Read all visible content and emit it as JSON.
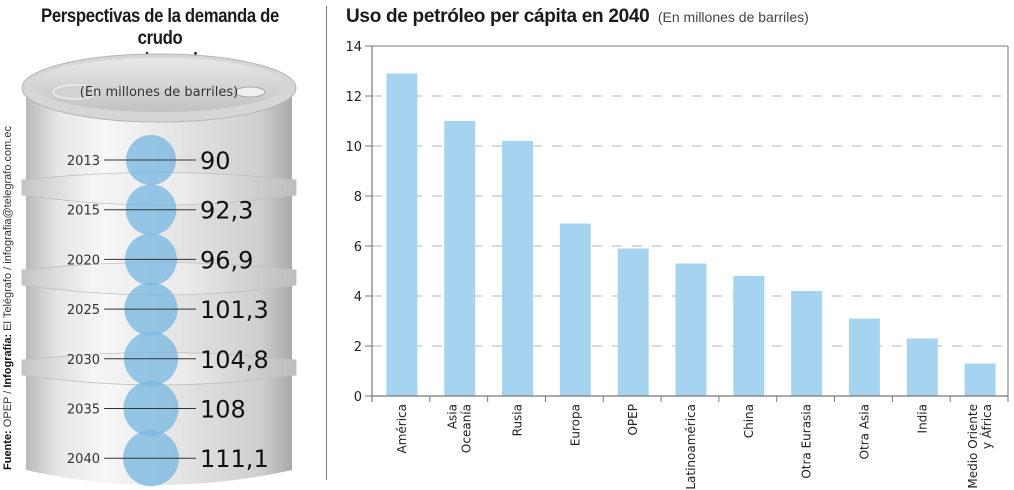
{
  "left_panel": {
    "title_line1": "Perspectivas de la demanda de crudo",
    "title_line2": "en el mundo",
    "unit_label": "(En millones de barriles)",
    "rows": [
      {
        "year": "2013",
        "value": "90"
      },
      {
        "year": "2015",
        "value": "92,3"
      },
      {
        "year": "2020",
        "value": "96,9"
      },
      {
        "year": "2025",
        "value": "101,3"
      },
      {
        "year": "2030",
        "value": "104,8"
      },
      {
        "year": "2035",
        "value": "108"
      },
      {
        "year": "2040",
        "value": "111,1"
      }
    ],
    "source_label": "Fuente:",
    "source_value": "OPEP /",
    "credit_label": "Infografía:",
    "credit_value": "El Telégrafo / infografia@telegrafo.com.ec",
    "circle_color": "#7bb8e0"
  },
  "chart_data": [
    {
      "type": "table",
      "title": "Perspectivas de la demanda de crudo en el mundo",
      "subtitle": "(En millones de barriles)",
      "categories": [
        "2013",
        "2015",
        "2020",
        "2025",
        "2030",
        "2035",
        "2040"
      ],
      "values": [
        90,
        92.3,
        96.9,
        101.3,
        104.8,
        108,
        111.1
      ]
    },
    {
      "type": "bar",
      "title": "Uso de petróleo per cápita en 2040",
      "subtitle": "(En millones de barriles)",
      "xlabel": "",
      "ylabel": "",
      "ylim": [
        0,
        14
      ],
      "yticks": [
        "0",
        "2",
        "4",
        "6",
        "8",
        "10",
        "12",
        "14"
      ],
      "ytick_values": [
        0,
        2,
        4,
        6,
        8,
        10,
        12,
        14
      ],
      "grid": true,
      "categories": [
        "América",
        "Asia Oceanía",
        "Rusia",
        "Europa",
        "OPEP",
        "Latinoamérica",
        "China",
        "Otra Eurasia",
        "Otra Asia",
        "India",
        "Medio Oriente y África"
      ],
      "category_lines": [
        [
          "América"
        ],
        [
          "Asia",
          "Oceanía"
        ],
        [
          "Rusia"
        ],
        [
          "Europa"
        ],
        [
          "OPEP"
        ],
        [
          "Latinoamérica"
        ],
        [
          "China"
        ],
        [
          "Otra Eurasia"
        ],
        [
          "Otra Asia"
        ],
        [
          "India"
        ],
        [
          "Medio Oriente",
          "y África"
        ]
      ],
      "values": [
        12.9,
        11.0,
        10.2,
        6.9,
        5.9,
        5.3,
        4.8,
        4.2,
        3.1,
        2.3,
        1.3
      ],
      "bar_color": "#a6d3ef"
    }
  ]
}
